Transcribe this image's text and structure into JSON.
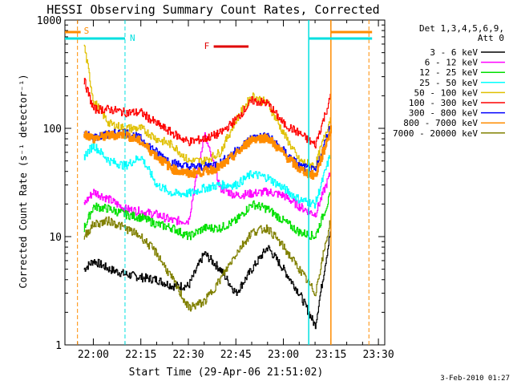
{
  "chart_data": {
    "type": "line",
    "title": "HESSI Observing Summary Count Rates, Corrected",
    "xlabel": "Start Time (29-Apr-06 21:51:02)",
    "ylabel": "Corrected Count Rate (s⁻¹ detector⁻¹)",
    "y_scale": "log",
    "ylim": [
      1,
      1000
    ],
    "xlim": [
      "21:51:02",
      "23:32:00"
    ],
    "x_ticks": [
      "22:00",
      "22:15",
      "22:30",
      "22:45",
      "23:00",
      "23:15",
      "23:30"
    ],
    "y_ticks": [
      "1",
      "10",
      "100",
      "1000"
    ],
    "legend_title": [
      "Det 1,3,4,5,6,9,",
      "Att 0"
    ],
    "legend_position": "right",
    "footer_date": "3-Feb-2010 01:27",
    "annotations": [
      {
        "label": "S",
        "color": "#ff8c00"
      },
      {
        "label": "N",
        "color": "#00e0e0"
      },
      {
        "label": "F",
        "color": "#e00000"
      }
    ],
    "x": [
      "21:57",
      "22:00",
      "22:05",
      "22:10",
      "22:15",
      "22:20",
      "22:25",
      "22:30",
      "22:35",
      "22:40",
      "22:45",
      "22:50",
      "22:55",
      "23:00",
      "23:05",
      "23:10",
      "23:15"
    ],
    "series": [
      {
        "name": "3 - 6 keV",
        "color": "#000000",
        "values": [
          5,
          6,
          5,
          4.5,
          4.2,
          4,
          3.5,
          3.5,
          7,
          5,
          3,
          5,
          8,
          5,
          3,
          1.5,
          12
        ]
      },
      {
        "name": "6 - 12 keV",
        "color": "#ff00ff",
        "values": [
          20,
          26,
          22,
          18,
          17,
          16,
          14,
          14,
          90,
          28,
          24,
          25,
          26,
          24,
          19,
          16,
          40
        ]
      },
      {
        "name": "12 - 25 keV",
        "color": "#00e000",
        "values": [
          12,
          19,
          18,
          16,
          15,
          13,
          12,
          10,
          12,
          12,
          14,
          20,
          18,
          14,
          11,
          10,
          25
        ]
      },
      {
        "name": "25 - 50 keV",
        "color": "#00ffff",
        "values": [
          55,
          70,
          50,
          45,
          55,
          30,
          25,
          25,
          28,
          30,
          30,
          38,
          35,
          28,
          22,
          20,
          60
        ]
      },
      {
        "name": "50 - 100 keV",
        "color": "#e0c000",
        "values": [
          600,
          180,
          110,
          100,
          100,
          80,
          70,
          50,
          50,
          60,
          120,
          200,
          170,
          90,
          50,
          45,
          130
        ]
      },
      {
        "name": "100 - 300 keV",
        "color": "#ff0000",
        "values": [
          280,
          150,
          150,
          140,
          140,
          110,
          90,
          75,
          80,
          90,
          120,
          180,
          170,
          110,
          90,
          70,
          200
        ]
      },
      {
        "name": "300 - 800 keV",
        "color": "#0000ff",
        "values": [
          90,
          82,
          88,
          92,
          80,
          60,
          48,
          44,
          44,
          48,
          62,
          82,
          85,
          62,
          45,
          40,
          110
        ]
      },
      {
        "name": "800 - 7000 keV",
        "color": "#ff8c00",
        "values": [
          90,
          80,
          86,
          88,
          75,
          55,
          42,
          38,
          40,
          44,
          58,
          80,
          82,
          58,
          42,
          36,
          100
        ]
      },
      {
        "name": "7000 - 20000 keV",
        "color": "#808000",
        "values": [
          10,
          13,
          14,
          12,
          10,
          7,
          4,
          2.2,
          2.5,
          4,
          7,
          11,
          12,
          8,
          5,
          3,
          15
        ]
      }
    ]
  }
}
